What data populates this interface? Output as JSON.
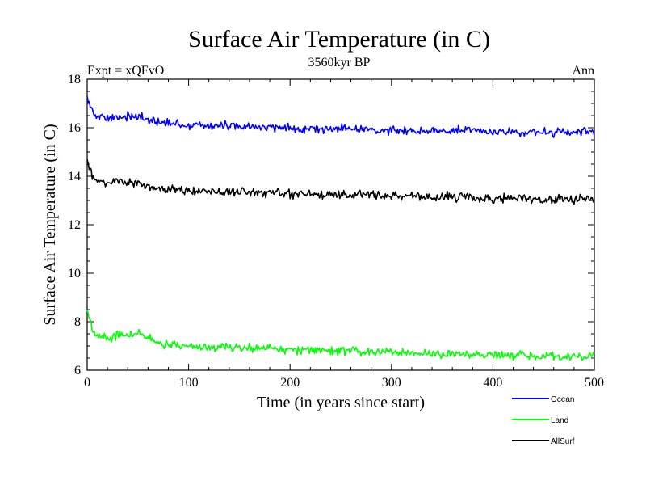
{
  "chart_data": {
    "type": "line",
    "title": "Surface Air Temperature (in C)",
    "subtitle": "3560kyr BP",
    "left_note": "Expt = xQFvO",
    "right_note": "Ann",
    "xlabel": "Time (in years since start)",
    "ylabel": "Surface Air Temperature (in C)",
    "xlim": [
      0,
      500
    ],
    "ylim": [
      6,
      18
    ],
    "xticks": [
      0,
      100,
      200,
      300,
      400,
      500
    ],
    "yticks": [
      6,
      8,
      10,
      12,
      14,
      16,
      18
    ],
    "x": [
      0,
      5,
      10,
      20,
      30,
      40,
      50,
      60,
      75,
      100,
      125,
      150,
      175,
      200,
      250,
      300,
      350,
      400,
      450,
      500
    ],
    "series": [
      {
        "name": "Ocean",
        "color": "#0000ff",
        "values": [
          17.3,
          16.7,
          16.45,
          16.35,
          16.45,
          16.5,
          16.45,
          16.3,
          16.2,
          16.1,
          16.1,
          16.05,
          16.0,
          15.98,
          15.95,
          15.9,
          15.88,
          15.85,
          15.8,
          15.8
        ]
      },
      {
        "name": "Land",
        "color": "#00ff00",
        "values": [
          8.5,
          7.7,
          7.4,
          7.3,
          7.45,
          7.5,
          7.5,
          7.3,
          7.1,
          7.0,
          6.95,
          6.95,
          6.9,
          6.85,
          6.8,
          6.75,
          6.65,
          6.6,
          6.55,
          6.6
        ]
      },
      {
        "name": "AllSurf",
        "color": "#000000",
        "values": [
          14.7,
          14.0,
          13.8,
          13.75,
          13.8,
          13.75,
          13.7,
          13.55,
          13.45,
          13.4,
          13.35,
          13.35,
          13.3,
          13.28,
          13.25,
          13.2,
          13.15,
          13.1,
          13.05,
          13.05
        ]
      }
    ]
  }
}
